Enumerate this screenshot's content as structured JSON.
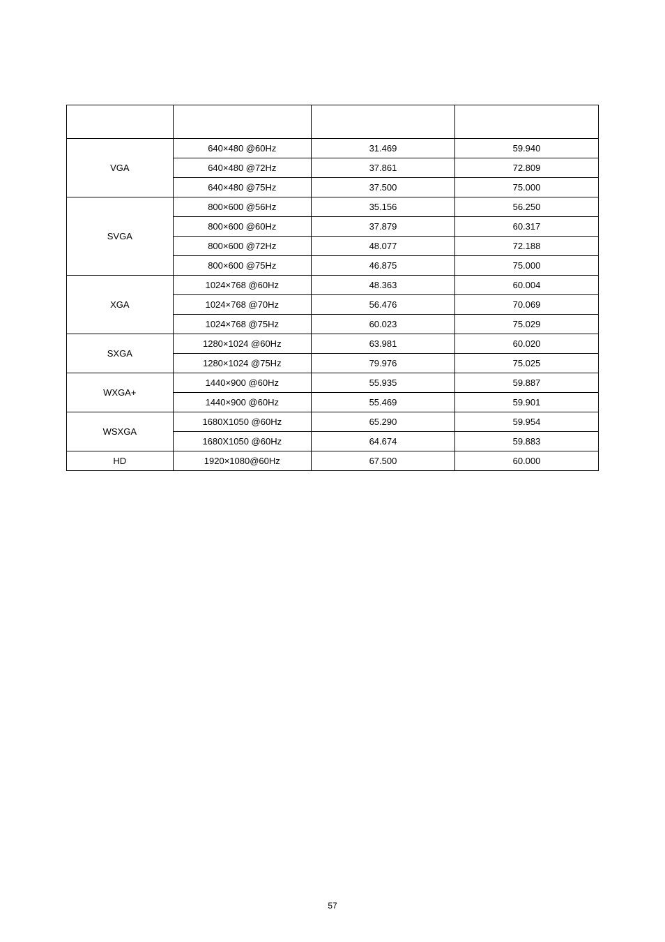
{
  "page_number": "57",
  "table": {
    "type": "table",
    "border_color": "#000000",
    "background_color": "#ffffff",
    "text_color": "#000000",
    "font_family": "Arial",
    "font_size_pt": 10,
    "column_widths_pct": [
      20,
      26,
      27,
      27
    ],
    "header": [
      "",
      "",
      "",
      ""
    ],
    "groups": [
      {
        "mode": "VGA",
        "rows": [
          {
            "resolution": "640×480 @60Hz",
            "hfreq": "31.469",
            "vfreq": "59.940"
          },
          {
            "resolution": "640×480 @72Hz",
            "hfreq": "37.861",
            "vfreq": "72.809"
          },
          {
            "resolution": "640×480 @75Hz",
            "hfreq": "37.500",
            "vfreq": "75.000"
          }
        ]
      },
      {
        "mode": "SVGA",
        "rows": [
          {
            "resolution": "800×600 @56Hz",
            "hfreq": "35.156",
            "vfreq": "56.250"
          },
          {
            "resolution": "800×600 @60Hz",
            "hfreq": "37.879",
            "vfreq": "60.317"
          },
          {
            "resolution": "800×600 @72Hz",
            "hfreq": "48.077",
            "vfreq": "72.188"
          },
          {
            "resolution": "800×600 @75Hz",
            "hfreq": "46.875",
            "vfreq": "75.000"
          }
        ]
      },
      {
        "mode": "XGA",
        "rows": [
          {
            "resolution": "1024×768 @60Hz",
            "hfreq": "48.363",
            "vfreq": "60.004"
          },
          {
            "resolution": "1024×768 @70Hz",
            "hfreq": "56.476",
            "vfreq": "70.069"
          },
          {
            "resolution": "1024×768 @75Hz",
            "hfreq": "60.023",
            "vfreq": "75.029"
          }
        ]
      },
      {
        "mode": "SXGA",
        "rows": [
          {
            "resolution": "1280×1024 @60Hz",
            "hfreq": "63.981",
            "vfreq": "60.020"
          },
          {
            "resolution": "1280×1024 @75Hz",
            "hfreq": "79.976",
            "vfreq": "75.025"
          }
        ]
      },
      {
        "mode": "WXGA+",
        "rows": [
          {
            "resolution": "1440×900 @60Hz",
            "hfreq": "55.935",
            "vfreq": "59.887"
          },
          {
            "resolution": "1440×900 @60Hz",
            "hfreq": "55.469",
            "vfreq": "59.901"
          }
        ]
      },
      {
        "mode": "WSXGA",
        "rows": [
          {
            "resolution": "1680X1050 @60Hz",
            "hfreq": "65.290",
            "vfreq": "59.954"
          },
          {
            "resolution": "1680X1050 @60Hz",
            "hfreq": "64.674",
            "vfreq": "59.883"
          }
        ]
      },
      {
        "mode": "HD",
        "rows": [
          {
            "resolution": "1920×1080@60Hz",
            "hfreq": "67.500",
            "vfreq": "60.000"
          }
        ]
      }
    ]
  }
}
